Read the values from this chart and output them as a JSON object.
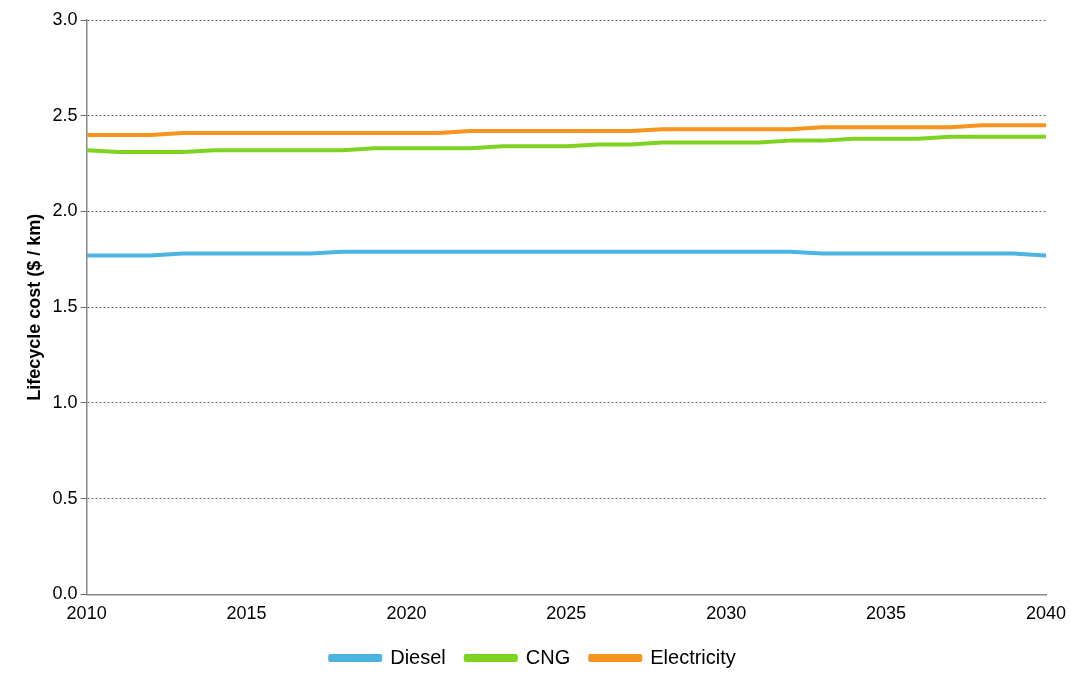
{
  "chart_data": {
    "type": "line",
    "ylabel": "Lifecycle cost ($ / km)",
    "x": [
      2010,
      2011,
      2012,
      2013,
      2014,
      2015,
      2016,
      2017,
      2018,
      2019,
      2020,
      2021,
      2022,
      2023,
      2024,
      2025,
      2026,
      2027,
      2028,
      2029,
      2030,
      2031,
      2032,
      2033,
      2034,
      2035,
      2036,
      2037,
      2038,
      2039,
      2040
    ],
    "series": [
      {
        "name": "Diesel",
        "color": "#4bb4e0",
        "values": [
          1.77,
          1.77,
          1.77,
          1.78,
          1.78,
          1.78,
          1.78,
          1.78,
          1.79,
          1.79,
          1.79,
          1.79,
          1.79,
          1.79,
          1.79,
          1.79,
          1.79,
          1.79,
          1.79,
          1.79,
          1.79,
          1.79,
          1.79,
          1.78,
          1.78,
          1.78,
          1.78,
          1.78,
          1.78,
          1.78,
          1.77
        ]
      },
      {
        "name": "CNG",
        "color": "#7ed321",
        "values": [
          2.32,
          2.31,
          2.31,
          2.31,
          2.32,
          2.32,
          2.32,
          2.32,
          2.32,
          2.33,
          2.33,
          2.33,
          2.33,
          2.34,
          2.34,
          2.34,
          2.35,
          2.35,
          2.36,
          2.36,
          2.36,
          2.36,
          2.37,
          2.37,
          2.38,
          2.38,
          2.38,
          2.39,
          2.39,
          2.39,
          2.39
        ]
      },
      {
        "name": "Electricity",
        "color": "#f7941d",
        "values": [
          2.4,
          2.4,
          2.4,
          2.41,
          2.41,
          2.41,
          2.41,
          2.41,
          2.41,
          2.41,
          2.41,
          2.41,
          2.42,
          2.42,
          2.42,
          2.42,
          2.42,
          2.42,
          2.43,
          2.43,
          2.43,
          2.43,
          2.43,
          2.44,
          2.44,
          2.44,
          2.44,
          2.44,
          2.45,
          2.45,
          2.45
        ]
      }
    ],
    "xlim": [
      2010,
      2040
    ],
    "xticks": [
      2010,
      2015,
      2020,
      2025,
      2030,
      2035,
      2040
    ],
    "ylim": [
      0,
      3
    ],
    "yticks": [
      {
        "value": 0,
        "label": "0.0"
      },
      {
        "value": 0.5,
        "label": "0.5"
      },
      {
        "value": 1,
        "label": "1.0"
      },
      {
        "value": 1.5,
        "label": "1.5"
      },
      {
        "value": 2,
        "label": "2.0"
      },
      {
        "value": 2.5,
        "label": "2.5"
      },
      {
        "value": 3,
        "label": "3.0"
      }
    ],
    "grid": "y",
    "legend": "bottom",
    "marker": "none",
    "line_style": "solid"
  }
}
